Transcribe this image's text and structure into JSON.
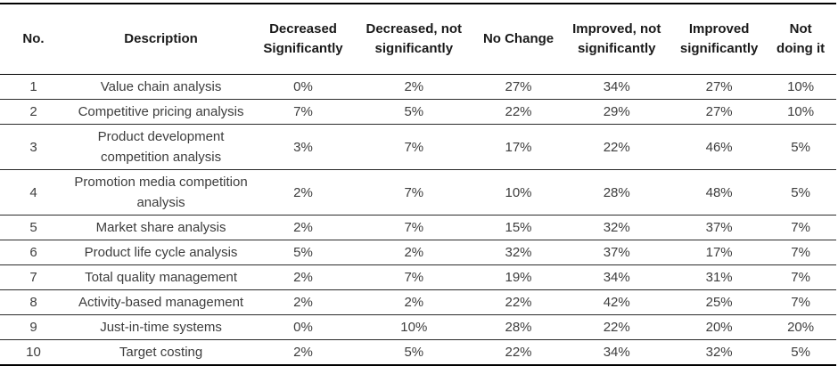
{
  "table": {
    "columns": [
      {
        "id": "no",
        "label": "No."
      },
      {
        "id": "description",
        "label": "Description"
      },
      {
        "id": "decreased_significantly",
        "label": "Decreased Significantly"
      },
      {
        "id": "decreased_not_significantly",
        "label": "Decreased, not significantly"
      },
      {
        "id": "no_change",
        "label": "No Change"
      },
      {
        "id": "improved_not_significantly",
        "label": "Improved, not significantly"
      },
      {
        "id": "improved_significantly",
        "label": "Improved significantly"
      },
      {
        "id": "not_doing_it",
        "label": "Not doing it"
      }
    ],
    "rows": [
      {
        "no": "1",
        "description": "Value chain analysis",
        "values": [
          "0%",
          "2%",
          "27%",
          "34%",
          "27%",
          "10%"
        ]
      },
      {
        "no": "2",
        "description": "Competitive pricing analysis",
        "values": [
          "7%",
          "5%",
          "22%",
          "29%",
          "27%",
          "10%"
        ]
      },
      {
        "no": "3",
        "description": "Product development competition analysis",
        "values": [
          "3%",
          "7%",
          "17%",
          "22%",
          "46%",
          "5%"
        ]
      },
      {
        "no": "4",
        "description": "Promotion media competition analysis",
        "values": [
          "2%",
          "7%",
          "10%",
          "28%",
          "48%",
          "5%"
        ]
      },
      {
        "no": "5",
        "description": "Market share analysis",
        "values": [
          "2%",
          "7%",
          "15%",
          "32%",
          "37%",
          "7%"
        ]
      },
      {
        "no": "6",
        "description": "Product life cycle analysis",
        "values": [
          "5%",
          "2%",
          "32%",
          "37%",
          "17%",
          "7%"
        ]
      },
      {
        "no": "7",
        "description": "Total quality management",
        "values": [
          "2%",
          "7%",
          "19%",
          "34%",
          "31%",
          "7%"
        ]
      },
      {
        "no": "8",
        "description": "Activity-based management",
        "values": [
          "2%",
          "2%",
          "22%",
          "42%",
          "25%",
          "7%"
        ]
      },
      {
        "no": "9",
        "description": "Just-in-time systems",
        "values": [
          "0%",
          "10%",
          "28%",
          "22%",
          "20%",
          "20%"
        ]
      },
      {
        "no": "10",
        "description": "Target costing",
        "values": [
          "2%",
          "5%",
          "22%",
          "34%",
          "32%",
          "5%"
        ]
      }
    ]
  }
}
